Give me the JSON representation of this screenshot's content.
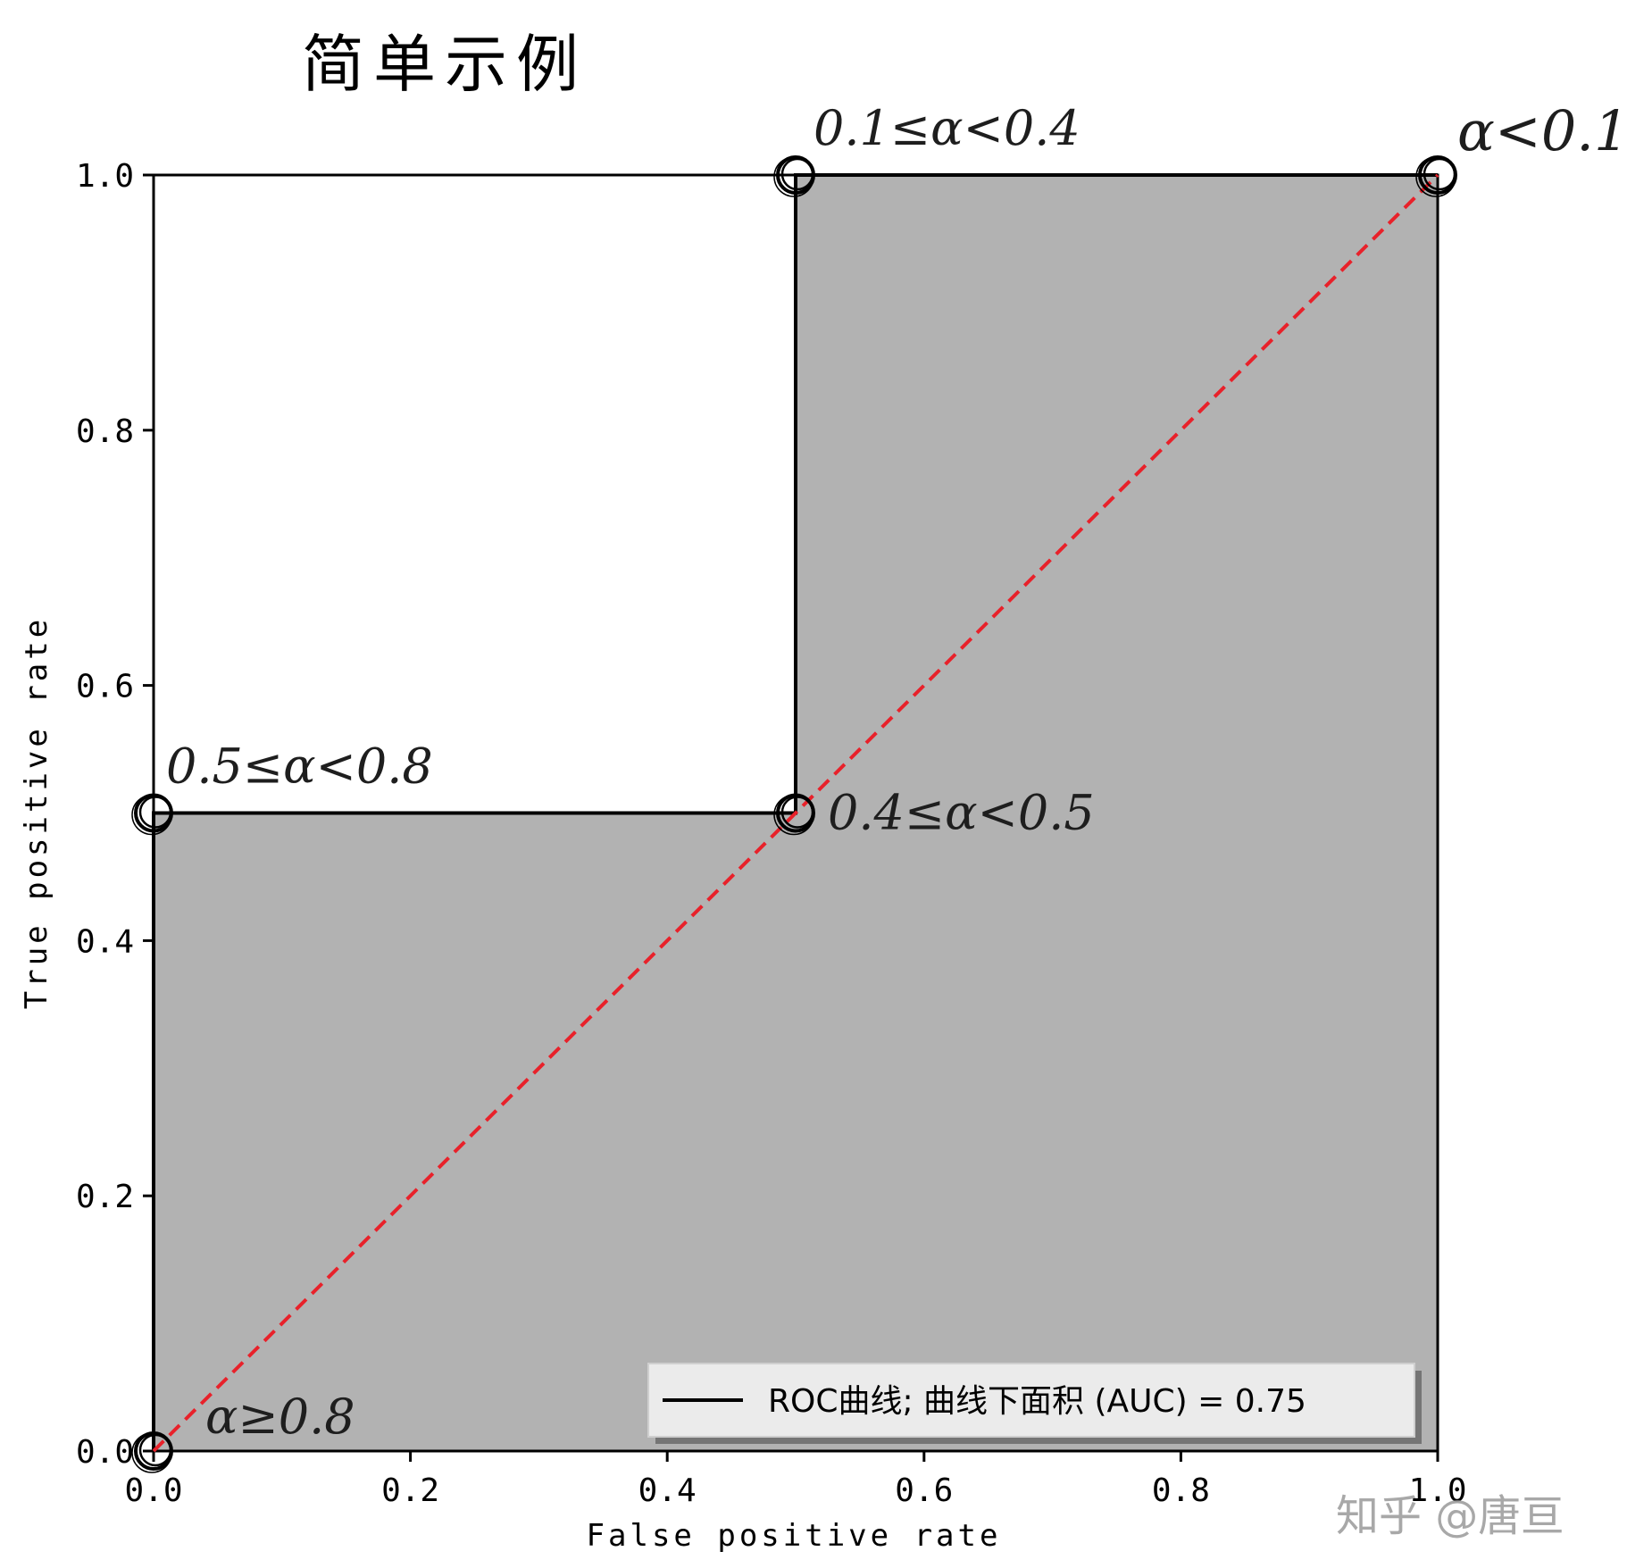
{
  "chart_data": {
    "type": "line",
    "title": "简单示例",
    "xlabel": "False positive rate",
    "ylabel": "True positive rate",
    "xlim": [
      0.0,
      1.0
    ],
    "ylim": [
      0.0,
      1.0
    ],
    "xticks": [
      "0.0",
      "0.2",
      "0.4",
      "0.6",
      "0.8",
      "1.0"
    ],
    "yticks": [
      "0.0",
      "0.2",
      "0.4",
      "0.6",
      "0.8",
      "1.0"
    ],
    "grid": false,
    "legend_position": "lower-right",
    "series": [
      {
        "name": "ROC曲线; 曲线下面积 (AUC) = 0.75",
        "style": "solid",
        "color": "#000000",
        "x": [
          0.0,
          0.0,
          0.5,
          0.5,
          1.0
        ],
        "y": [
          0.0,
          0.5,
          0.5,
          1.0,
          1.0
        ]
      },
      {
        "style": "dashed",
        "color": "#e8212a",
        "x": [
          0.0,
          1.0
        ],
        "y": [
          0.0,
          1.0
        ]
      }
    ],
    "fill_under_curve_color": "#b2b2b2",
    "markers": [
      {
        "x": 0.0,
        "y": 0.0
      },
      {
        "x": 0.0,
        "y": 0.5
      },
      {
        "x": 0.5,
        "y": 0.5
      },
      {
        "x": 0.5,
        "y": 1.0
      },
      {
        "x": 1.0,
        "y": 1.0
      }
    ],
    "annotations": [
      {
        "text": "α≥0.8",
        "x": 0.0,
        "y": 0.0
      },
      {
        "text": "0.5≤α<0.8",
        "x": 0.0,
        "y": 0.5
      },
      {
        "text": "0.4≤α<0.5",
        "x": 0.5,
        "y": 0.5
      },
      {
        "text": "0.1≤α<0.4",
        "x": 0.5,
        "y": 1.0
      },
      {
        "text": "α<0.1",
        "x": 1.0,
        "y": 1.0
      }
    ]
  },
  "watermark": "知乎 @唐亘"
}
